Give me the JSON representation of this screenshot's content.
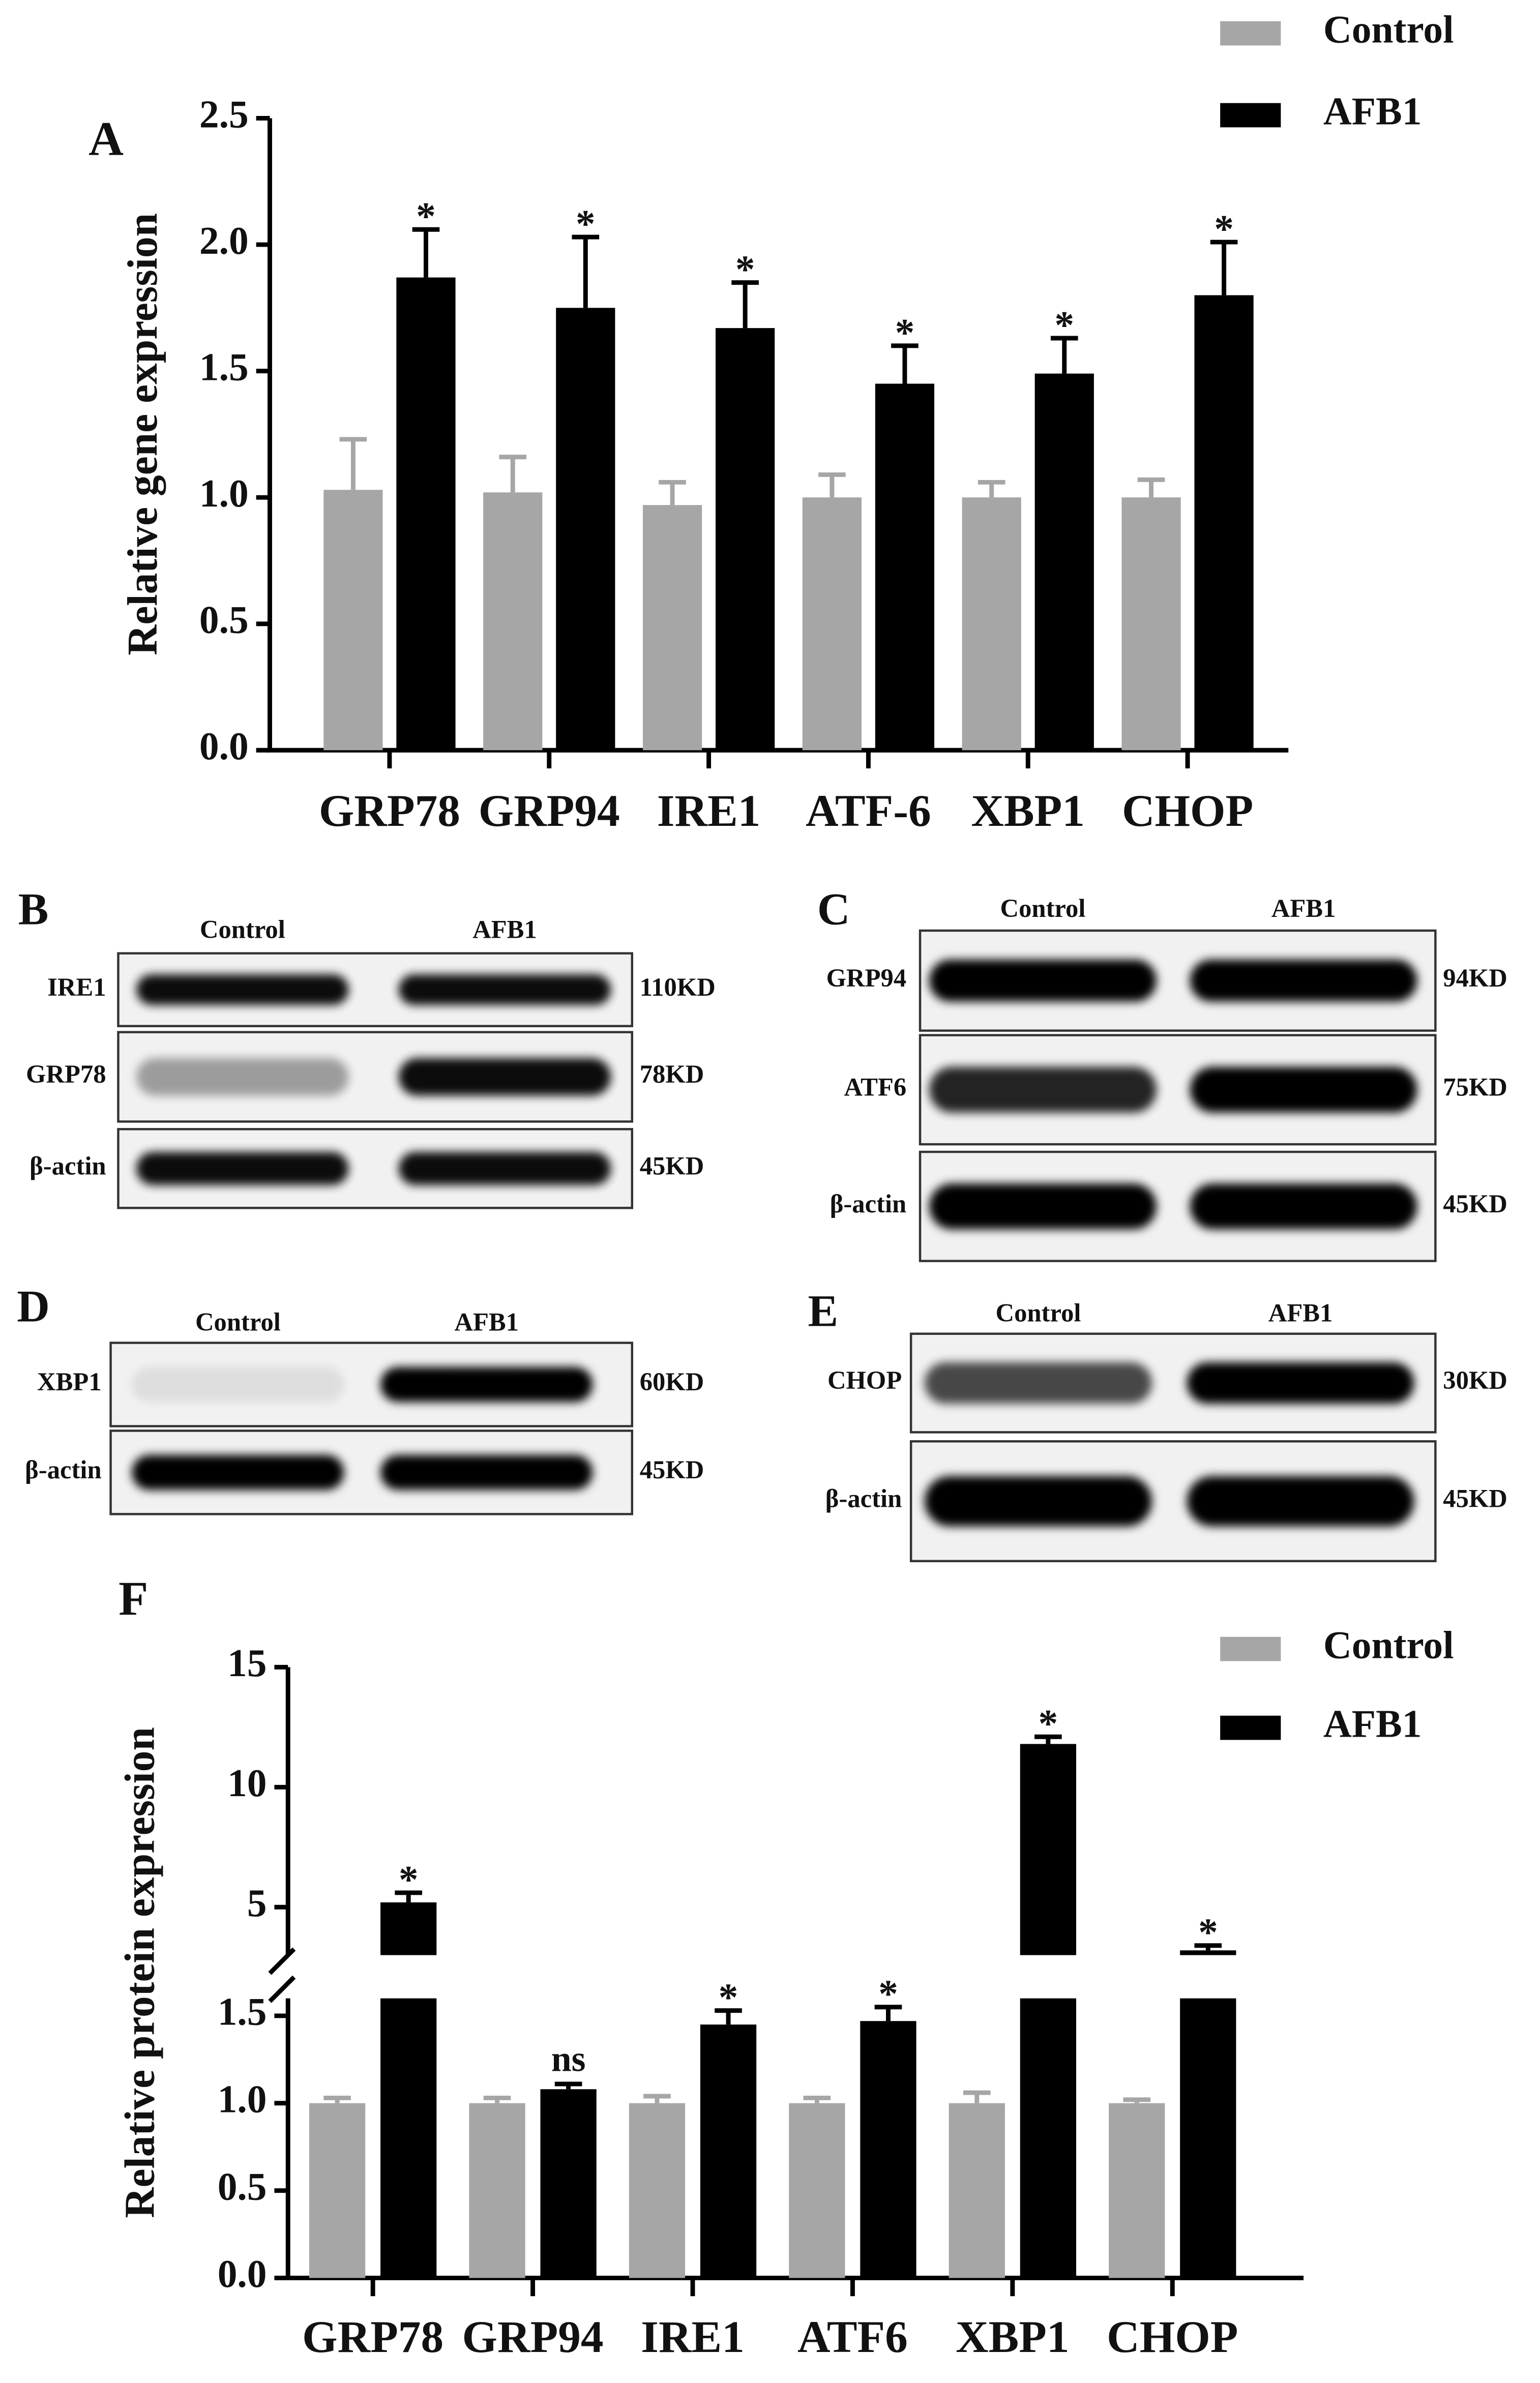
{
  "chart_data": [
    {
      "type": "bar",
      "panel": "A",
      "ylabel": "Relative gene expression",
      "categories": [
        "GRP78",
        "GRP94",
        "IRE1",
        "ATF-6",
        "XBP1",
        "CHOP"
      ],
      "series": [
        {
          "name": "Control",
          "color": "#a6a6a6",
          "values": [
            1.03,
            1.02,
            0.97,
            1.0,
            1.0,
            1.0
          ],
          "errors": [
            0.2,
            0.14,
            0.09,
            0.09,
            0.06,
            0.07
          ]
        },
        {
          "name": "AFB1",
          "color": "#000000",
          "values": [
            1.87,
            1.75,
            1.67,
            1.45,
            1.49,
            1.8
          ],
          "errors": [
            0.19,
            0.28,
            0.18,
            0.15,
            0.14,
            0.21
          ],
          "annotations": [
            "*",
            "*",
            "*",
            "*",
            "*",
            "*"
          ]
        }
      ],
      "ylim": [
        0,
        2.5
      ],
      "yticks": [
        {
          "value": 0,
          "label": "0.0"
        },
        0.5,
        {
          "value": 1,
          "label": "1.0"
        },
        1.5,
        {
          "value": 2,
          "label": "2.0"
        },
        2.5
      ],
      "legend": "top-right"
    },
    {
      "type": "bar",
      "panel": "F",
      "ylabel": "Relative protein expression",
      "categories": [
        "GRP78",
        "GRP94",
        "IRE1",
        "ATF6",
        "XBP1",
        "CHOP"
      ],
      "series": [
        {
          "name": "Control",
          "color": "#a6a6a6",
          "values": [
            1.0,
            1.0,
            1.0,
            1.0,
            1.0,
            1.0
          ],
          "errors": [
            0.03,
            0.03,
            0.04,
            0.03,
            0.06,
            0.02
          ]
        },
        {
          "name": "AFB1",
          "color": "#000000",
          "values": [
            5.2,
            1.08,
            1.45,
            1.47,
            11.8,
            3.2
          ],
          "errors": [
            0.4,
            0.03,
            0.08,
            0.08,
            0.3,
            0.2
          ],
          "annotations": [
            "*",
            "ns",
            "*",
            "*",
            "*",
            "*"
          ]
        }
      ],
      "ylim": [
        0,
        15
      ],
      "ybreak": [
        1.6,
        3
      ],
      "yticks": [
        {
          "value": 0,
          "label": "0.0"
        },
        0.5,
        {
          "value": 1,
          "label": "1.0"
        },
        1.5,
        5,
        10,
        15
      ],
      "legend": "top-right"
    }
  ],
  "blots": [
    {
      "panel": "B",
      "columns": [
        "Control",
        "AFB1"
      ],
      "rows": [
        {
          "protein": "IRE1",
          "size": "110KD"
        },
        {
          "protein": "GRP78",
          "size": "78KD"
        },
        {
          "protein": "β-actin",
          "size": "45KD"
        }
      ]
    },
    {
      "panel": "C",
      "columns": [
        "Control",
        "AFB1"
      ],
      "rows": [
        {
          "protein": "GRP94",
          "size": "94KD"
        },
        {
          "protein": "ATF6",
          "size": "75KD"
        },
        {
          "protein": "β-actin",
          "size": "45KD"
        }
      ]
    },
    {
      "panel": "D",
      "columns": [
        "Control",
        "AFB1"
      ],
      "rows": [
        {
          "protein": "XBP1",
          "size": "60KD"
        },
        {
          "protein": "β-actin",
          "size": "45KD"
        }
      ]
    },
    {
      "panel": "E",
      "columns": [
        "Control",
        "AFB1"
      ],
      "rows": [
        {
          "protein": "CHOP",
          "size": "30KD"
        },
        {
          "protein": "β-actin",
          "size": "45KD"
        }
      ]
    }
  ]
}
